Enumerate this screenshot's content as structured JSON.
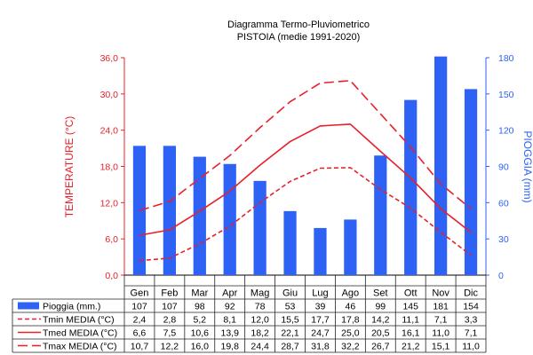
{
  "chart_data": {
    "type": "bar",
    "title": "Diagramma Termo-Pluviometrico",
    "subtitle": "PISTOIA (medie 1991-2020)",
    "categories": [
      "Gen",
      "Feb",
      "Mar",
      "Apr",
      "Mag",
      "Giu",
      "Lug",
      "Ago",
      "Set",
      "Ott",
      "Nov",
      "Dic"
    ],
    "left_axis": {
      "label": "TEMPERATURE (°C)",
      "ylim": [
        0,
        36
      ],
      "ticks": [
        "0,0",
        "6,0",
        "12,0",
        "18,0",
        "24,0",
        "30,0",
        "36,0"
      ],
      "color": "#e8202a"
    },
    "right_axis": {
      "label": "PIOGGIA (mm)",
      "ylim": [
        0,
        180
      ],
      "ticks": [
        "0",
        "30",
        "60",
        "90",
        "120",
        "150",
        "180"
      ],
      "color": "#2d62f5"
    },
    "series": [
      {
        "name": "Pioggia (mm.)",
        "kind": "bar",
        "axis": "right",
        "color": "#2d62f5",
        "values": [
          107,
          107,
          98,
          92,
          78,
          53,
          39,
          46,
          99,
          145,
          181,
          154
        ],
        "labels": [
          "107",
          "107",
          "98",
          "92",
          "78",
          "53",
          "39",
          "46",
          "99",
          "145",
          "181",
          "154"
        ]
      },
      {
        "name": "Tmin MEDIA (°C)",
        "kind": "line",
        "axis": "left",
        "style": "dashed",
        "color": "#e8202a",
        "values": [
          2.4,
          2.8,
          5.2,
          8.1,
          12.0,
          15.5,
          17.7,
          17.8,
          14.2,
          11.1,
          7.1,
          3.3
        ],
        "labels": [
          "2,4",
          "2,8",
          "5,2",
          "8,1",
          "12,0",
          "15,5",
          "17,7",
          "17,8",
          "14,2",
          "11,1",
          "7,1",
          "3,3"
        ]
      },
      {
        "name": "Tmed MEDIA (°C)",
        "kind": "line",
        "axis": "left",
        "style": "solid",
        "color": "#e8202a",
        "values": [
          6.6,
          7.5,
          10.6,
          13.9,
          18.2,
          22.1,
          24.7,
          25.0,
          20.5,
          16.1,
          11.0,
          7.1
        ],
        "labels": [
          "6,6",
          "7,5",
          "10,6",
          "13,9",
          "18,2",
          "22,1",
          "24,7",
          "25,0",
          "20,5",
          "16,1",
          "11,0",
          "7,1"
        ]
      },
      {
        "name": "Tmax MEDIA (°C)",
        "kind": "line",
        "axis": "left",
        "style": "longdash",
        "color": "#e8202a",
        "values": [
          10.7,
          12.2,
          16.0,
          19.8,
          24.4,
          28.7,
          31.8,
          32.2,
          26.7,
          21.2,
          15.1,
          11.0
        ],
        "labels": [
          "10,7",
          "12,2",
          "16,0",
          "19,8",
          "24,4",
          "28,7",
          "31,8",
          "32,2",
          "26,7",
          "21,2",
          "15,1",
          "11,0"
        ]
      }
    ],
    "grid": false,
    "legend": "data-table-bottom"
  }
}
